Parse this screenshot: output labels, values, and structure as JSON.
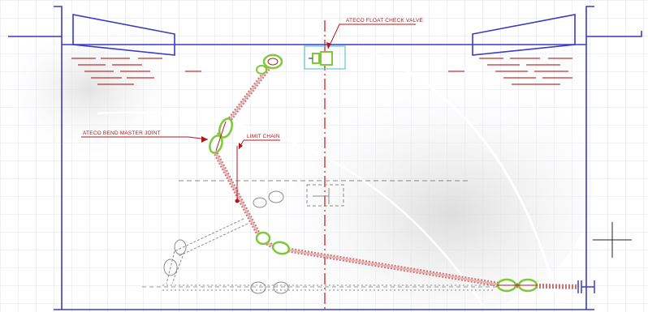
{
  "labels": {
    "float_check_valve": "ATECO FLOAT CHECK VALVE",
    "bend_master_joint": "ATECO BEND MASTER JOINT",
    "limit_chain": "LIMIT CHAIN"
  },
  "colors": {
    "structure": "#3a3ac8",
    "annotation": "#b01818",
    "joint_highlight": "#7fc83a",
    "grid": "#d6dbe6",
    "ghost_positions": "#8a8a8a",
    "valve_box": "#6fc8d8"
  },
  "icons": {
    "crosshair": "crosshair-cursor-icon"
  }
}
